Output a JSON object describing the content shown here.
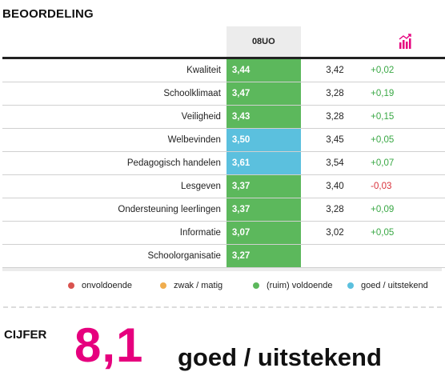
{
  "section_title": "BEOORDELING",
  "table": {
    "school_code": "08UO",
    "trend_icon": "bar-chart-trend-icon",
    "rows": [
      {
        "label": "Kwaliteit",
        "score": "3,44",
        "level": "green",
        "comparison": "3,42",
        "diff": "+0,02",
        "sign": "pos"
      },
      {
        "label": "Schoolklimaat",
        "score": "3,47",
        "level": "green",
        "comparison": "3,28",
        "diff": "+0,19",
        "sign": "pos"
      },
      {
        "label": "Veiligheid",
        "score": "3,43",
        "level": "green",
        "comparison": "3,28",
        "diff": "+0,15",
        "sign": "pos"
      },
      {
        "label": "Welbevinden",
        "score": "3,50",
        "level": "blue",
        "comparison": "3,45",
        "diff": "+0,05",
        "sign": "pos"
      },
      {
        "label": "Pedagogisch handelen",
        "score": "3,61",
        "level": "blue",
        "comparison": "3,54",
        "diff": "+0,07",
        "sign": "pos"
      },
      {
        "label": "Lesgeven",
        "score": "3,37",
        "level": "green",
        "comparison": "3,40",
        "diff": "-0,03",
        "sign": "neg"
      },
      {
        "label": "Ondersteuning leerlingen",
        "score": "3,37",
        "level": "green",
        "comparison": "3,28",
        "diff": "+0,09",
        "sign": "pos"
      },
      {
        "label": "Informatie",
        "score": "3,07",
        "level": "green",
        "comparison": "3,02",
        "diff": "+0,05",
        "sign": "pos"
      },
      {
        "label": "Schoolorganisatie",
        "score": "3,27",
        "level": "green",
        "comparison": "",
        "diff": "",
        "sign": "pos"
      }
    ]
  },
  "legend": [
    {
      "label": "onvoldoende",
      "color": "#d9534f"
    },
    {
      "label": "zwak / matig",
      "color": "#f0ad4e"
    },
    {
      "label": "(ruim) voldoende",
      "color": "#5cb85c"
    },
    {
      "label": "goed / uitstekend",
      "color": "#5bc0de"
    }
  ],
  "cijfer": {
    "label": "CIJFER",
    "value": "8,1",
    "text": "goed / uitstekend",
    "value_color": "#e6007e"
  }
}
